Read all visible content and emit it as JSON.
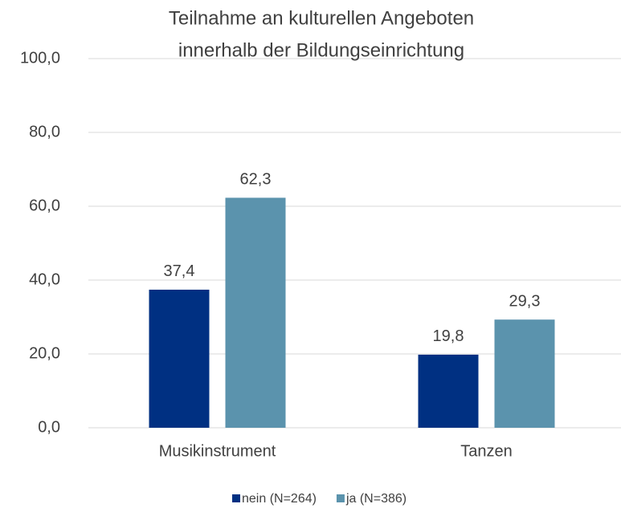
{
  "chart_data": {
    "type": "bar",
    "title": [
      "Teilnahme an kulturellen Angeboten",
      "innerhalb der Bildungseinrichtung"
    ],
    "categories": [
      "Musikinstrument",
      "Tanzen"
    ],
    "series": [
      {
        "name": "nein (N=264)",
        "color": "#003082",
        "values": [
          37.4,
          19.8
        ],
        "value_labels": [
          "37,4",
          "19,8"
        ]
      },
      {
        "name": "ja (N=386)",
        "color": "#5b93ad",
        "values": [
          62.3,
          29.3
        ],
        "value_labels": [
          "62,3",
          "29,3"
        ]
      }
    ],
    "ylim": [
      0,
      100
    ],
    "yticks": [
      {
        "value": 0,
        "label": "0,0"
      },
      {
        "value": 20,
        "label": "20,0"
      },
      {
        "value": 40,
        "label": "40,0"
      },
      {
        "value": 60,
        "label": "60,0"
      },
      {
        "value": 80,
        "label": "80,0"
      },
      {
        "value": 100,
        "label": "100,0"
      }
    ],
    "grid": true,
    "legend": "bottom"
  }
}
